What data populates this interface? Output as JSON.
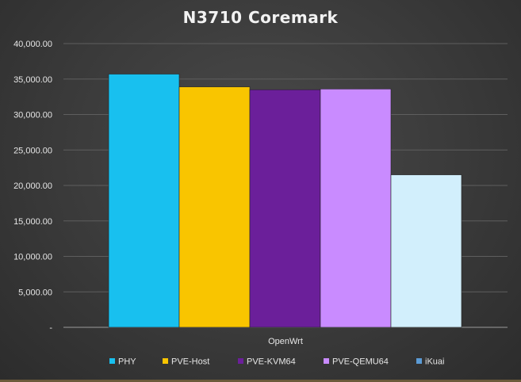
{
  "chart_data": {
    "type": "bar",
    "title": "N3710 Coremark",
    "categories": [
      "OpenWrt"
    ],
    "series": [
      {
        "name": "PHY",
        "values": [
          35700
        ],
        "color": "#18c0ef"
      },
      {
        "name": "PVE-Host",
        "values": [
          33900
        ],
        "color": "#f9c500"
      },
      {
        "name": "PVE-KVM64",
        "values": [
          33500
        ],
        "color": "#6b1f9a"
      },
      {
        "name": "PVE-QEMU64",
        "values": [
          33600
        ],
        "color": "#c98bff"
      },
      {
        "name": "iKuai",
        "values": [
          21500
        ],
        "color": "#d2effc",
        "legend_color": "#5b9bd5"
      }
    ],
    "ylim": [
      0,
      40000
    ],
    "y_ticks": [
      0,
      5000,
      10000,
      15000,
      20000,
      25000,
      30000,
      35000,
      40000
    ],
    "y_tick_labels": [
      "-",
      "5,000.00",
      "10,000.00",
      "15,000.00",
      "20,000.00",
      "25,000.00",
      "30,000.00",
      "35,000.00",
      "40,000.00"
    ],
    "grid": true,
    "legend_position": "bottom"
  }
}
